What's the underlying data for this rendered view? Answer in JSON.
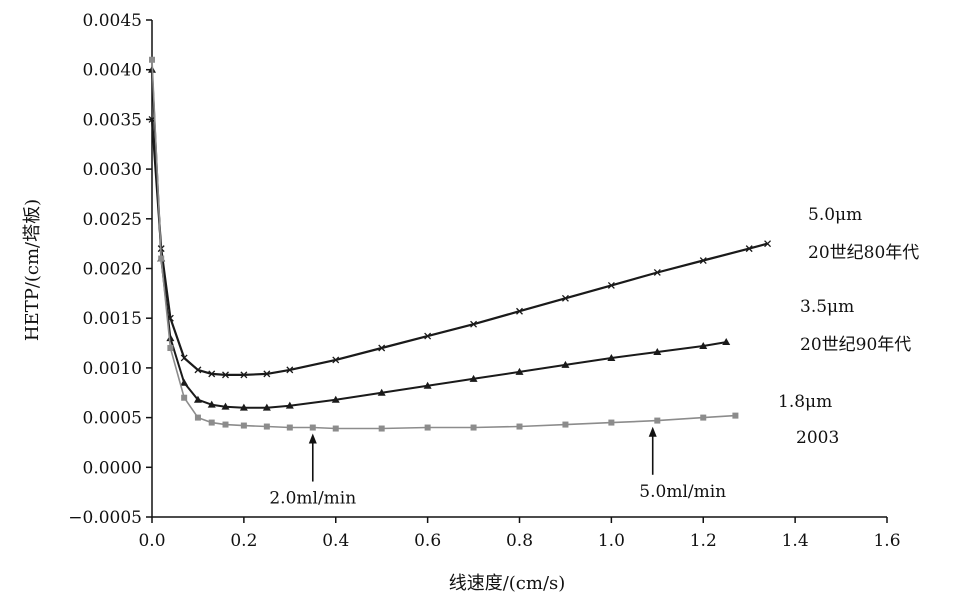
{
  "chart_data": {
    "type": "line",
    "title": "",
    "xlabel": "线速度/(cm/s)",
    "ylabel": "HETP/(cm/塔板)",
    "xlim": [
      0.0,
      1.6
    ],
    "ylim": [
      -0.0005,
      0.0045
    ],
    "x_ticks": [
      "0.0",
      "0.2",
      "0.4",
      "0.6",
      "0.8",
      "1.0",
      "1.2",
      "1.4",
      "1.6"
    ],
    "y_ticks": [
      "-0.0005",
      "0.0000",
      "0.0005",
      "0.0010",
      "0.0015",
      "0.0020",
      "0.0025",
      "0.0030",
      "0.0035",
      "0.0040",
      "0.0045"
    ],
    "grid": false,
    "series": [
      {
        "name": "5.0μm 20世纪80年代",
        "label_lines": [
          "5.0μm",
          "20世纪80年代"
        ],
        "marker": "x",
        "color": "#1a1a1a",
        "x": [
          0.0,
          0.02,
          0.04,
          0.07,
          0.1,
          0.13,
          0.16,
          0.2,
          0.25,
          0.3,
          0.4,
          0.5,
          0.6,
          0.7,
          0.8,
          0.9,
          1.0,
          1.1,
          1.2,
          1.3,
          1.34
        ],
        "y": [
          0.0035,
          0.0022,
          0.0015,
          0.0011,
          0.00098,
          0.00094,
          0.00093,
          0.00093,
          0.00094,
          0.00098,
          0.00108,
          0.0012,
          0.00132,
          0.00144,
          0.00157,
          0.0017,
          0.00183,
          0.00196,
          0.00208,
          0.0022,
          0.00225
        ]
      },
      {
        "name": "3.5μm 20世纪90年代",
        "label_lines": [
          "3.5μm",
          "20世纪90年代"
        ],
        "marker": "triangle",
        "color": "#1a1a1a",
        "x": [
          0.0,
          0.02,
          0.04,
          0.07,
          0.1,
          0.13,
          0.16,
          0.2,
          0.25,
          0.3,
          0.4,
          0.5,
          0.6,
          0.7,
          0.8,
          0.9,
          1.0,
          1.1,
          1.2,
          1.25
        ],
        "y": [
          0.004,
          0.0021,
          0.0013,
          0.00085,
          0.00068,
          0.00063,
          0.00061,
          0.0006,
          0.0006,
          0.00062,
          0.00068,
          0.00075,
          0.00082,
          0.00089,
          0.00096,
          0.00103,
          0.0011,
          0.00116,
          0.00122,
          0.00126
        ]
      },
      {
        "name": "1.8μm 2003",
        "label_lines": [
          "1.8μm",
          "2003"
        ],
        "marker": "square",
        "color": "#8c8c8c",
        "x": [
          0.0,
          0.02,
          0.04,
          0.07,
          0.1,
          0.13,
          0.16,
          0.2,
          0.25,
          0.3,
          0.35,
          0.4,
          0.5,
          0.6,
          0.7,
          0.8,
          0.9,
          1.0,
          1.1,
          1.2,
          1.27
        ],
        "y": [
          0.0041,
          0.0021,
          0.0012,
          0.0007,
          0.0005,
          0.00045,
          0.00043,
          0.00042,
          0.00041,
          0.0004,
          0.0004,
          0.00039,
          0.00039,
          0.0004,
          0.0004,
          0.00041,
          0.00043,
          0.00045,
          0.00047,
          0.0005,
          0.00052
        ]
      }
    ],
    "annotations": [
      {
        "text": "2.0ml/min",
        "x": 0.35
      },
      {
        "text": "5.0ml/min",
        "x": 1.09
      }
    ]
  }
}
